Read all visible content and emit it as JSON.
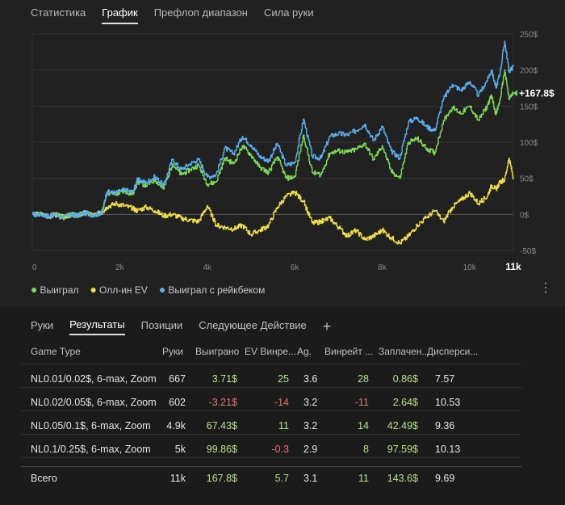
{
  "top_tabs": [
    "Статистика",
    "График",
    "Префлоп диапазон",
    "Сила руки"
  ],
  "chart_data": {
    "type": "line",
    "x_ticks": [
      "0",
      "2k",
      "4k",
      "6k",
      "8k",
      "10k",
      "11k"
    ],
    "y_ticks": [
      "250$",
      "200$",
      "150$",
      "100$",
      "50$",
      "0$",
      "-50$"
    ],
    "ylim": [
      -50,
      250
    ],
    "end_label": "+167.8$",
    "series": [
      {
        "name": "Выиграл",
        "color": "#7ed957",
        "x": [
          0,
          200,
          400,
          500,
          700,
          900,
          1000,
          1200,
          1400,
          1600,
          1700,
          1900,
          2100,
          2300,
          2400,
          2600,
          2800,
          3000,
          3200,
          3400,
          3600,
          3800,
          4000,
          4200,
          4400,
          4600,
          4800,
          5000,
          5200,
          5400,
          5600,
          5800,
          6000,
          6200,
          6400,
          6600,
          6800,
          7000,
          7200,
          7400,
          7600,
          7800,
          8000,
          8200,
          8400,
          8600,
          8800,
          9000,
          9200,
          9400,
          9600,
          9800,
          10000,
          10200,
          10400,
          10500,
          10600,
          10700,
          10800,
          10900,
          11000
        ],
        "y": [
          0,
          0,
          -3,
          0,
          -4,
          0,
          -2,
          2,
          -1,
          3,
          30,
          28,
          32,
          28,
          45,
          40,
          48,
          35,
          70,
          55,
          62,
          68,
          42,
          45,
          78,
          70,
          95,
          82,
          65,
          58,
          80,
          50,
          52,
          110,
          58,
          55,
          85,
          88,
          86,
          90,
          98,
          76,
          95,
          60,
          50,
          100,
          105,
          92,
          85,
          130,
          148,
          140,
          150,
          130,
          150,
          165,
          138,
          160,
          200,
          160,
          168
        ]
      },
      {
        "name": "Олл-ин EV",
        "color": "#f0e04a",
        "x": [
          0,
          200,
          400,
          500,
          700,
          900,
          1000,
          1200,
          1400,
          1600,
          1700,
          1900,
          2100,
          2300,
          2400,
          2600,
          2800,
          3000,
          3200,
          3400,
          3600,
          3800,
          4000,
          4200,
          4400,
          4600,
          4800,
          5000,
          5200,
          5400,
          5600,
          5800,
          6000,
          6200,
          6400,
          6600,
          6800,
          7000,
          7200,
          7400,
          7600,
          7800,
          8000,
          8200,
          8400,
          8600,
          8800,
          9000,
          9200,
          9400,
          9600,
          9800,
          10000,
          10200,
          10400,
          10500,
          10600,
          10700,
          10800,
          10900,
          11000
        ],
        "y": [
          0,
          0,
          -3,
          0,
          -4,
          0,
          -2,
          2,
          -1,
          3,
          10,
          15,
          12,
          8,
          5,
          10,
          5,
          -2,
          0,
          -5,
          -8,
          -10,
          12,
          -15,
          -18,
          -20,
          -15,
          -28,
          -22,
          -15,
          10,
          25,
          30,
          18,
          -12,
          -10,
          -5,
          -18,
          -30,
          -22,
          -35,
          -30,
          -22,
          -32,
          -40,
          -30,
          -15,
          -5,
          5,
          -10,
          10,
          20,
          30,
          15,
          25,
          40,
          35,
          45,
          48,
          78,
          50
        ]
      },
      {
        "name": "Выиграл с рейкбеком",
        "color": "#5aaef0",
        "x": [
          0,
          200,
          400,
          500,
          700,
          900,
          1000,
          1200,
          1400,
          1600,
          1700,
          1900,
          2100,
          2300,
          2400,
          2600,
          2800,
          3000,
          3200,
          3400,
          3600,
          3800,
          4000,
          4200,
          4400,
          4600,
          4800,
          5000,
          5200,
          5400,
          5600,
          5800,
          6000,
          6200,
          6400,
          6600,
          6800,
          7000,
          7200,
          7400,
          7600,
          7800,
          8000,
          8200,
          8400,
          8600,
          8800,
          9000,
          9200,
          9400,
          9600,
          9800,
          10000,
          10200,
          10400,
          10500,
          10600,
          10700,
          10800,
          10900,
          11000
        ],
        "y": [
          0,
          0,
          -3,
          0,
          -4,
          0,
          -2,
          2,
          -1,
          3,
          31,
          30,
          34,
          31,
          48,
          44,
          52,
          40,
          76,
          62,
          70,
          76,
          52,
          55,
          92,
          84,
          108,
          96,
          80,
          74,
          98,
          68,
          72,
          132,
          80,
          78,
          108,
          112,
          110,
          116,
          125,
          102,
          122,
          88,
          78,
          128,
          134,
          122,
          116,
          160,
          180,
          172,
          184,
          165,
          186,
          200,
          175,
          198,
          240,
          198,
          205
        ]
      }
    ]
  },
  "legend": [
    {
      "label": "Выиграл",
      "color": "#7ed957"
    },
    {
      "label": "Олл-ин EV",
      "color": "#f0e04a"
    },
    {
      "label": "Выиграл с рейкбеком",
      "color": "#5aaef0"
    }
  ],
  "more_icon": "⋮",
  "bottom_tabs": [
    "Руки",
    "Результаты",
    "Позиции",
    "Следующее Действие"
  ],
  "add_tab": "+",
  "table": {
    "headers": [
      "Game Type",
      "Руки",
      "Выиграно",
      "EV Винре...",
      "Ag.",
      "Винрейт ...",
      "Заплачен...",
      "Дисперси..."
    ],
    "rows": [
      {
        "game": "NL0.01/0.02$, 6-max, Zoom",
        "hands": "667",
        "won": "3.71$",
        "ev": "25",
        "ag": "3.6",
        "winrate": "28",
        "rake": "0.86$",
        "disp": "7.57"
      },
      {
        "game": "NL0.02/0.05$, 6-max, Zoom",
        "hands": "602",
        "won": "-3.21$",
        "ev": "-14",
        "ag": "3.2",
        "winrate": "-11",
        "rake": "2.64$",
        "disp": "10.53"
      },
      {
        "game": "NL0.05/0.1$, 6-max, Zoom",
        "hands": "4.9k",
        "won": "67.43$",
        "ev": "11",
        "ag": "3.2",
        "winrate": "14",
        "rake": "42.49$",
        "disp": "9.36"
      },
      {
        "game": "NL0.1/0.25$, 6-max, Zoom",
        "hands": "5k",
        "won": "99.86$",
        "ev": "-0.3",
        "ag": "2.9",
        "winrate": "8",
        "rake": "97.59$",
        "disp": "10.13"
      }
    ],
    "total": {
      "game": "Всего",
      "hands": "11k",
      "won": "167.8$",
      "ev": "5.7",
      "ag": "3.1",
      "winrate": "11",
      "rake": "143.6$",
      "disp": "9.69"
    }
  }
}
